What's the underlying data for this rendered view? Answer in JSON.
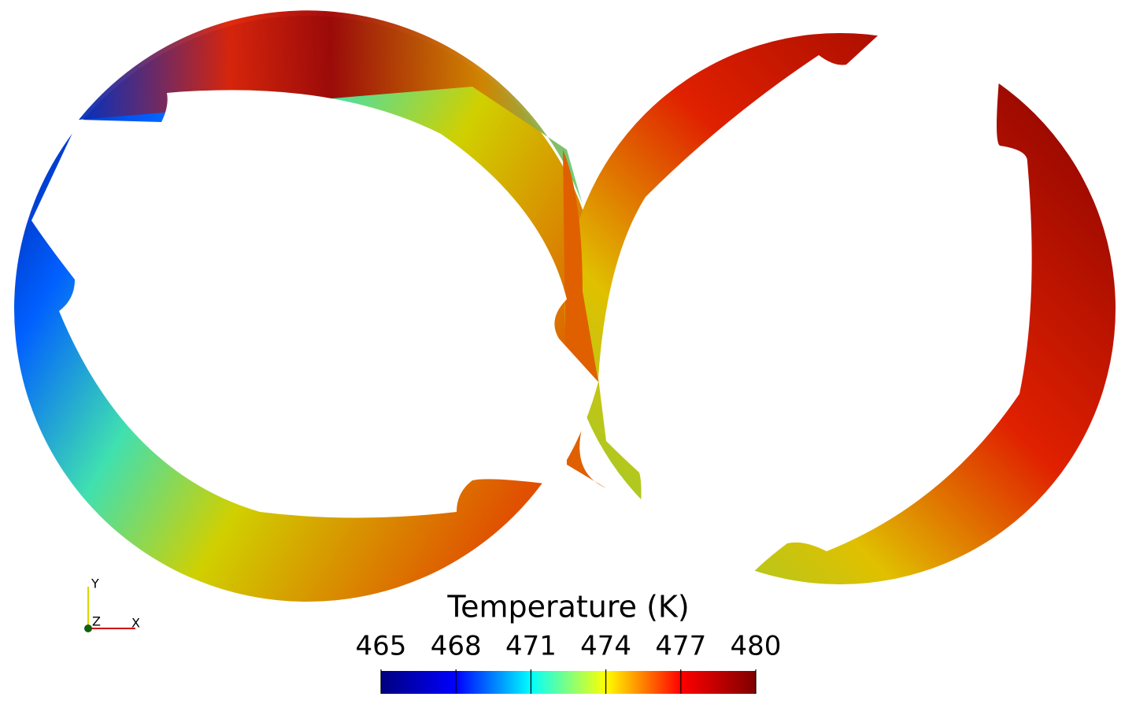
{
  "chart_data": {
    "type": "field",
    "title": "Temperature (K)",
    "clim": [
      465,
      480
    ],
    "ticks": [
      465,
      468,
      471,
      474,
      477,
      480
    ],
    "colormap": [
      "#00007f",
      "#0000ff",
      "#00ffff",
      "#ffff00",
      "#ff0000",
      "#7f0000"
    ]
  },
  "orientation_axes": {
    "y": "Y",
    "z": "Z",
    "x": "X"
  }
}
